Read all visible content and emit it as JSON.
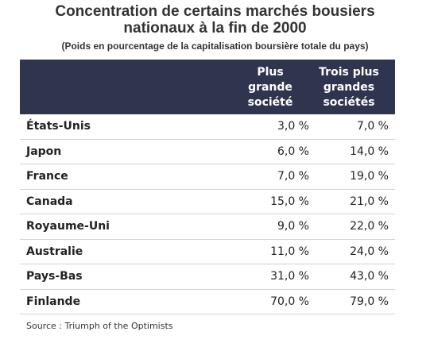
{
  "title_line1": "Concentration de certains marchés bousiers",
  "title_line2": "nationaux à la fin de 2000",
  "subtitle": "(Poids en pourcentage de la capitalisation boursière totale du pays)",
  "headers": {
    "col1": [
      "Plus",
      "grande",
      "société"
    ],
    "col2": [
      "Trois plus",
      "grandes",
      "sociétés"
    ]
  },
  "rows": [
    {
      "name": "États-Unis",
      "v1": "3,0 %",
      "v2": "7,0 %"
    },
    {
      "name": "Japon",
      "v1": "6,0 %",
      "v2": "14,0 %"
    },
    {
      "name": "France",
      "v1": "7,0 %",
      "v2": "19,0 %"
    },
    {
      "name": "Canada",
      "v1": "15,0 %",
      "v2": "21,0 %"
    },
    {
      "name": "Royaume-Uni",
      "v1": "9,0 %",
      "v2": "22,0 %"
    },
    {
      "name": "Australie",
      "v1": "11,0 %",
      "v2": "24,0 %"
    },
    {
      "name": "Pays-Bas",
      "v1": "31,0 %",
      "v2": "43,0 %"
    },
    {
      "name": "Finlande",
      "v1": "70,0 %",
      "v2": "79,0 %"
    }
  ],
  "source": "Source : Triumph of the Optimists",
  "colors": {
    "header_bg": "#30354f",
    "header_text": "#ffffff",
    "divider": "#d0d0d0"
  }
}
